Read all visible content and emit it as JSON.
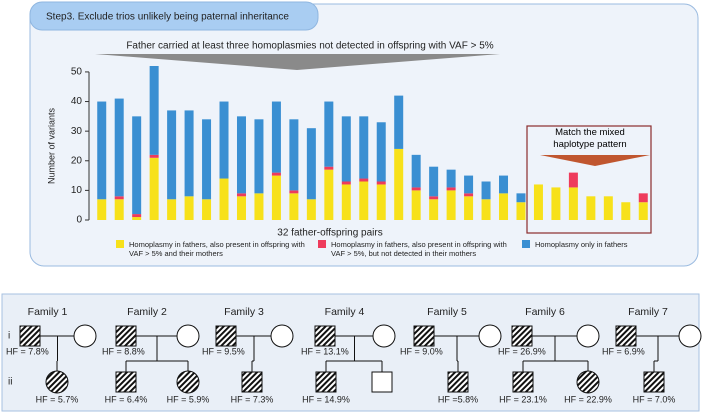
{
  "chart_data": {
    "type": "bar",
    "stacked": true,
    "header": "Step3. Exclude trios unlikely being paternal inheritance",
    "annotation": "Father carried at least three homoplasmies not detected in offspring with VAF > 5%",
    "highlight_annotation": "Match the mixed haplotype pattern",
    "x_label": "32 father-offspring pairs",
    "y_label": "Number of variants",
    "categories": [
      null,
      null,
      null,
      null,
      null,
      null,
      null,
      null,
      null,
      null,
      null,
      null,
      null,
      null,
      null,
      null,
      null,
      null,
      null,
      null,
      null,
      null,
      null,
      null,
      null,
      null,
      null,
      null,
      null,
      null,
      null,
      null
    ],
    "series": [
      {
        "name": "Homoplasmy in fathers, also present in offspring with VAF > 5% and their mothers",
        "color": "#f7e11a",
        "values": [
          7,
          7,
          1,
          21,
          7,
          8,
          7,
          14,
          8,
          9,
          15,
          9,
          7,
          17,
          12,
          13,
          12,
          24,
          10,
          7,
          10,
          8,
          7,
          9,
          6,
          12,
          11,
          11,
          8,
          8,
          6,
          6
        ]
      },
      {
        "name": "Homoplasmy in fathers, also present in offspring with VAF > 5%, but not detected in their mothers",
        "color": "#ee3b5c",
        "values": [
          0,
          1,
          1,
          1,
          0,
          0,
          0,
          0,
          1,
          0,
          1,
          1,
          0,
          1,
          1,
          1,
          1,
          0,
          1,
          1,
          1,
          1,
          0,
          0,
          0,
          0,
          0,
          5,
          0,
          0,
          0,
          3
        ]
      },
      {
        "name": "Homoplasmy only in fathers",
        "color": "#3a8fd2",
        "values": [
          33,
          33,
          33,
          30,
          30,
          29,
          27,
          26,
          26,
          25,
          24,
          24,
          24,
          22,
          22,
          21,
          20,
          18,
          11,
          10,
          6,
          6,
          6,
          6,
          3,
          0,
          0,
          0,
          0,
          0,
          0,
          0
        ]
      }
    ],
    "ylim": [
      0,
      52
    ],
    "yticks": [
      0,
      10,
      20,
      30,
      40,
      50
    ]
  },
  "pedigree": {
    "generations": [
      "i",
      "ii"
    ],
    "families": [
      {
        "name": "Family 1",
        "father_hf": "HF = 7.8%",
        "children": [
          {
            "sex": "female",
            "affected": true,
            "hf": "HF = 5.7%"
          }
        ]
      },
      {
        "name": "Family 2",
        "father_hf": "HF = 8.8%",
        "children": [
          {
            "sex": "male",
            "affected": true,
            "hf": "HF = 6.4%"
          },
          {
            "sex": "female",
            "affected": true,
            "hf": "HF = 5.9%"
          }
        ]
      },
      {
        "name": "Family 3",
        "father_hf": "HF = 9.5%",
        "children": [
          {
            "sex": "male",
            "affected": true,
            "hf": "HF = 7.3%"
          }
        ]
      },
      {
        "name": "Family 4",
        "father_hf": "HF = 13.1%",
        "children": [
          {
            "sex": "male",
            "affected": true,
            "hf": "HF = 14.9%"
          },
          {
            "sex": "male",
            "affected": false
          }
        ]
      },
      {
        "name": "Family 5",
        "father_hf": "HF = 9.0%",
        "children": [
          {
            "sex": "male",
            "affected": true,
            "hf": "HF =5.8%"
          }
        ]
      },
      {
        "name": "Family 6",
        "father_hf": "HF = 26.9%",
        "children": [
          {
            "sex": "male",
            "affected": true,
            "hf": "HF = 23.1%"
          },
          {
            "sex": "female",
            "affected": true,
            "hf": "HF = 22.9%"
          }
        ]
      },
      {
        "name": "Family 7",
        "father_hf": "HF = 6.9%",
        "children": [
          {
            "sex": "male",
            "affected": true,
            "hf": "HF = 7.0%"
          }
        ]
      }
    ]
  }
}
